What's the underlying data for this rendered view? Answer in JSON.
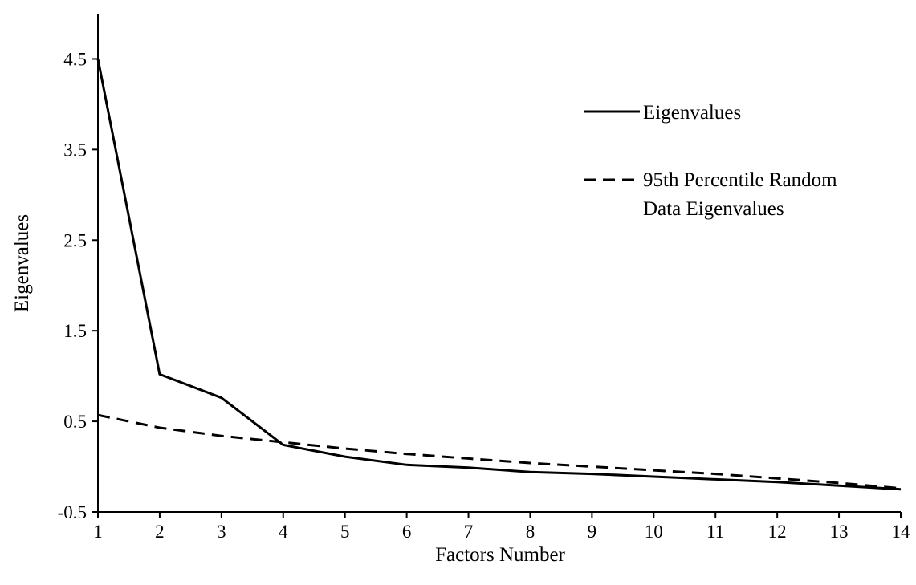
{
  "chart_data": {
    "type": "line",
    "title": "",
    "xlabel": "Factors Number",
    "ylabel": "Eigenvalues",
    "x": [
      1,
      2,
      3,
      4,
      5,
      6,
      7,
      8,
      9,
      10,
      11,
      12,
      13,
      14
    ],
    "xlim": [
      1,
      14
    ],
    "ylim": [
      -0.5,
      5.0
    ],
    "yticks": [
      -0.5,
      0.5,
      1.5,
      2.5,
      3.5,
      4.5
    ],
    "ytick_labels": [
      "-0.5",
      "0.5",
      "1.5",
      "2.5",
      "3.5",
      "4.5"
    ],
    "xtick_labels": [
      "1",
      "2",
      "3",
      "4",
      "5",
      "6",
      "7",
      "8",
      "9",
      "10",
      "11",
      "12",
      "13",
      "14"
    ],
    "grid": false,
    "legend_position": "top-right",
    "series": [
      {
        "name": "Eigenvalues",
        "style": "solid",
        "color": "#000000",
        "values": [
          4.5,
          1.02,
          0.76,
          0.24,
          0.11,
          0.02,
          -0.01,
          -0.06,
          -0.08,
          -0.11,
          -0.14,
          -0.17,
          -0.21,
          -0.25
        ]
      },
      {
        "name": "95th Percentile Random Data Eigenvalues",
        "legend_lines": [
          "95th Percentile Random",
          "Data Eigenvalues"
        ],
        "style": "dashed",
        "color": "#000000",
        "values": [
          0.57,
          0.43,
          0.34,
          0.27,
          0.2,
          0.14,
          0.09,
          0.04,
          0.0,
          -0.04,
          -0.08,
          -0.13,
          -0.18,
          -0.24
        ]
      }
    ]
  }
}
